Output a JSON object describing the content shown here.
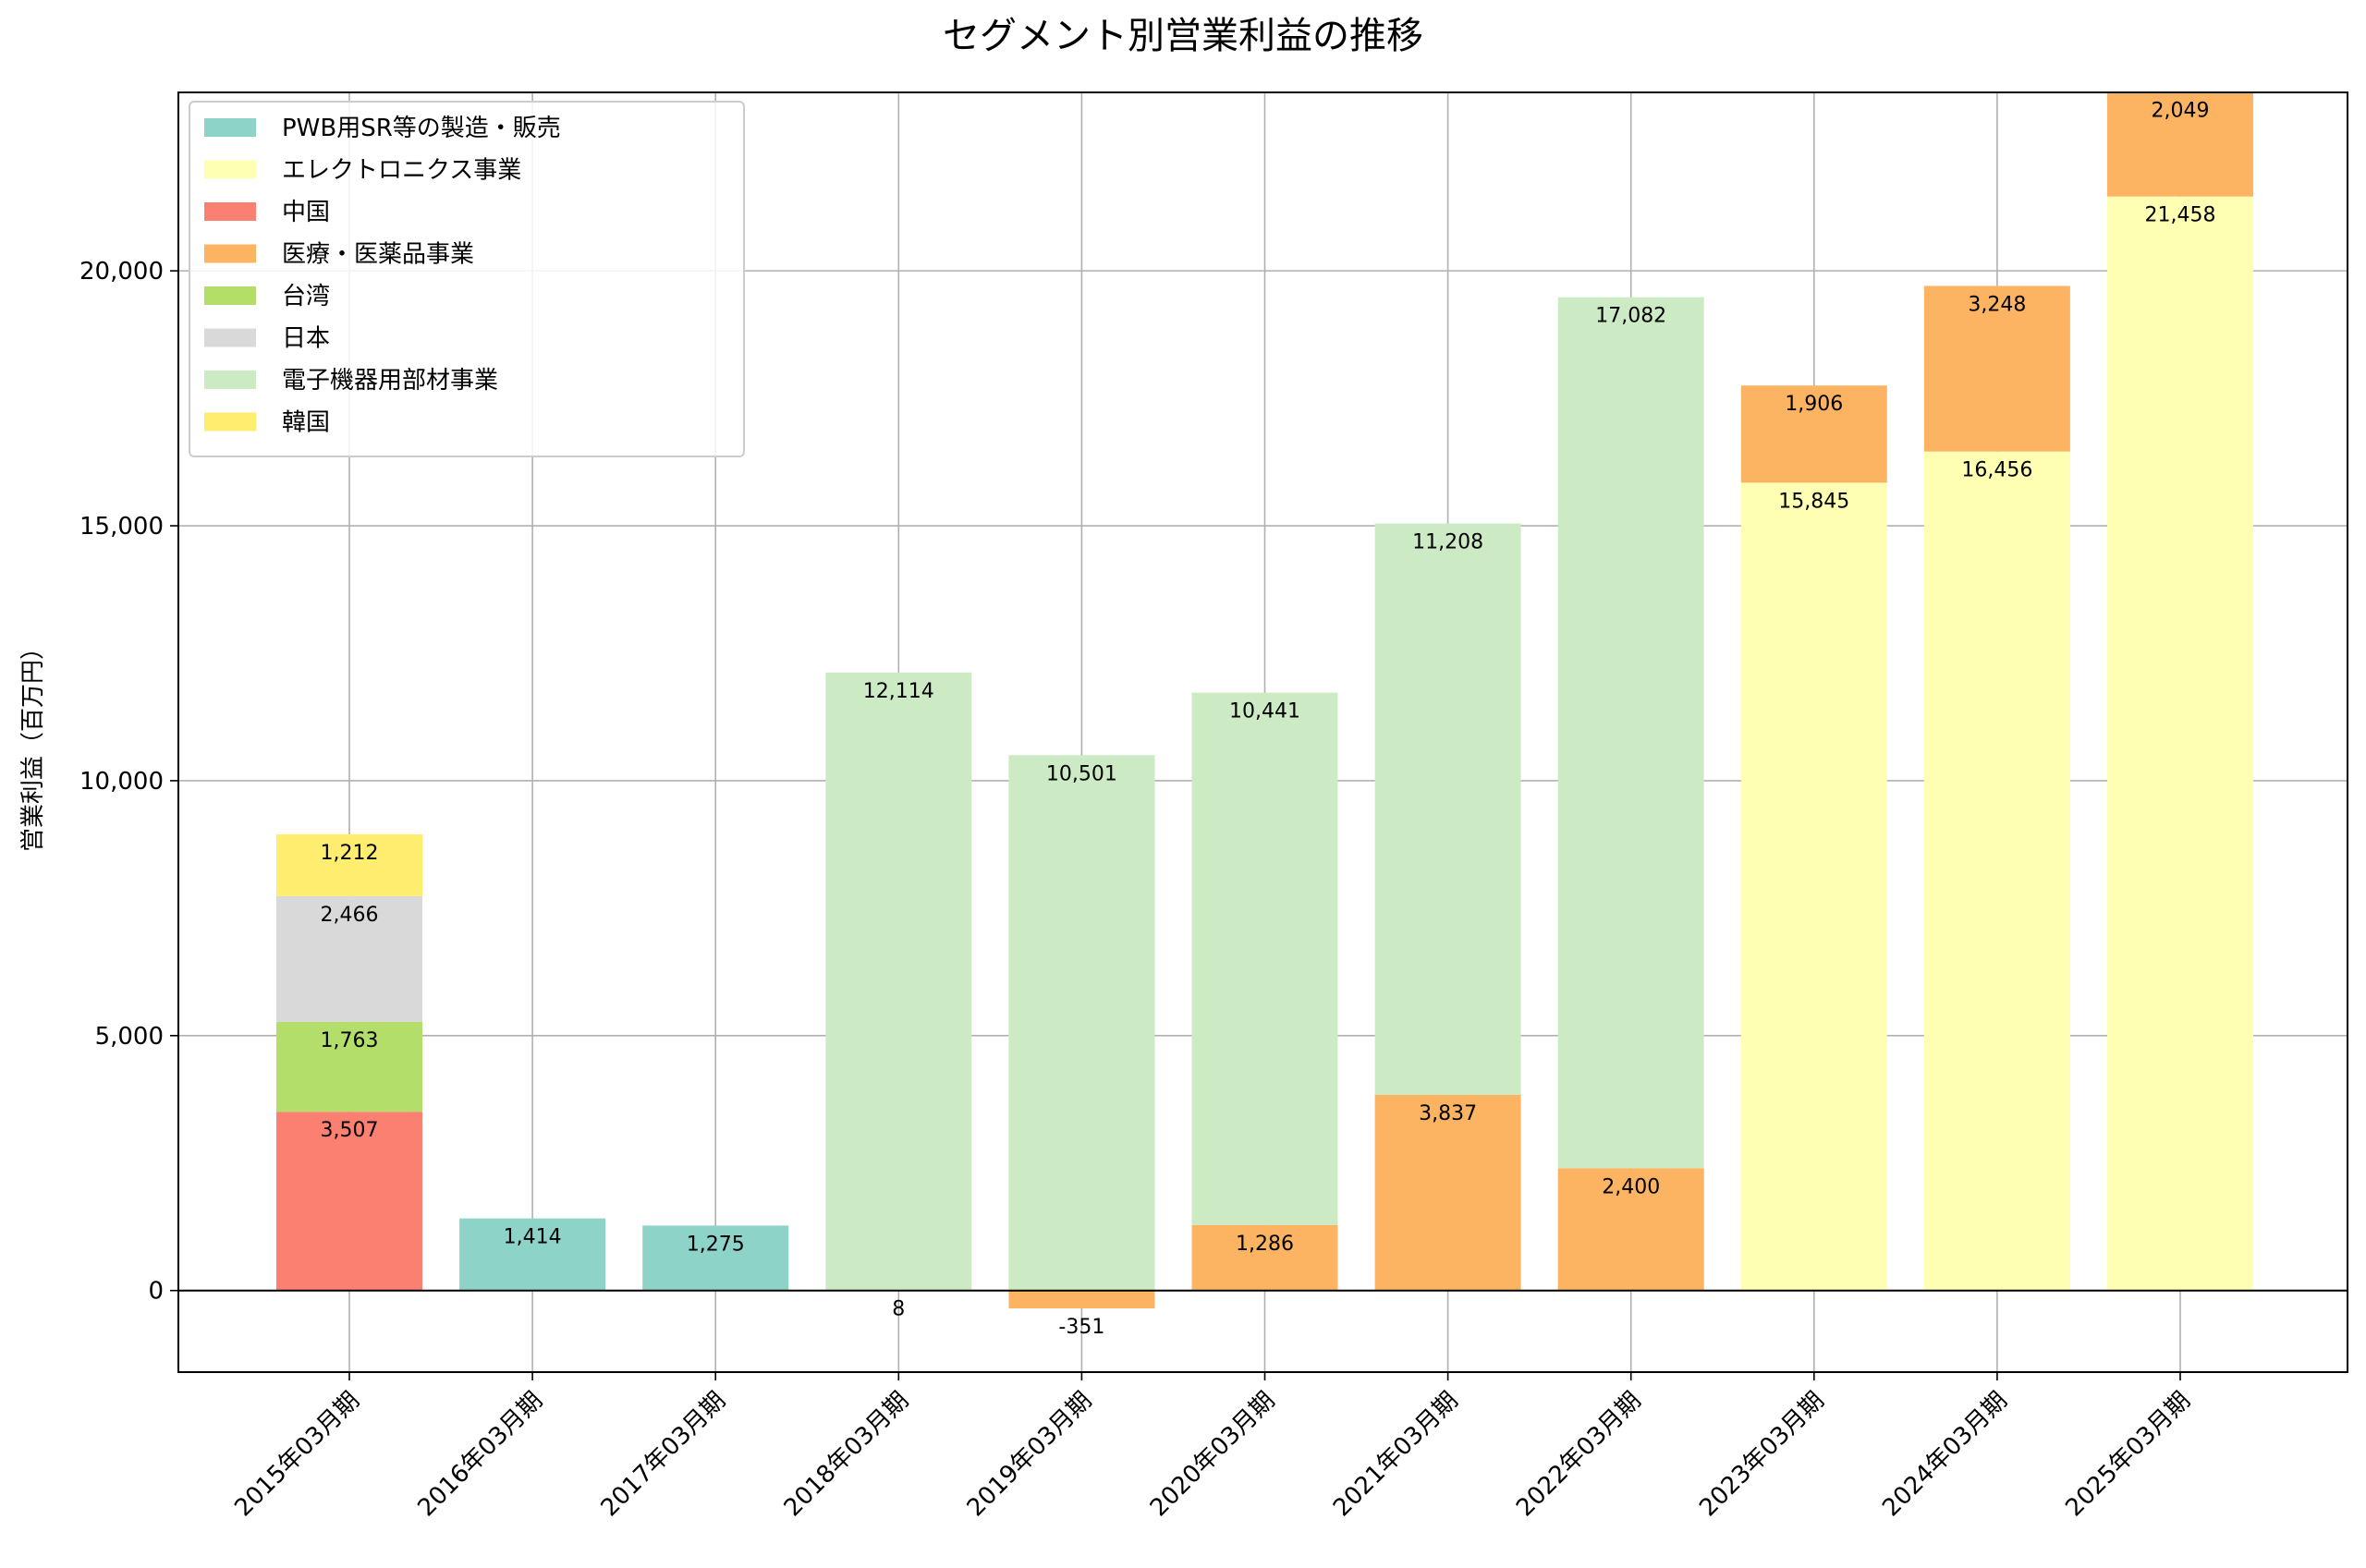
{
  "chart_data": {
    "type": "bar",
    "stacked": true,
    "title": "セグメント別営業利益の推移",
    "xlabel": "",
    "ylabel": "営業利益（百万円）",
    "ylim": [
      -1600,
      23500
    ],
    "yticks": [
      0,
      5000,
      10000,
      15000,
      20000
    ],
    "ytick_labels": [
      "0",
      "5,000",
      "10,000",
      "15,000",
      "20,000"
    ],
    "grid": true,
    "legend_position": "top-left",
    "categories": [
      "2015年03月期",
      "2016年03月期",
      "2017年03月期",
      "2018年03月期",
      "2019年03月期",
      "2020年03月期",
      "2021年03月期",
      "2022年03月期",
      "2023年03月期",
      "2024年03月期",
      "2025年03月期"
    ],
    "series": [
      {
        "name": "PWB用SR等の製造・販売",
        "color": "#8dd3c7",
        "values": [
          null,
          1414,
          1275,
          null,
          null,
          null,
          null,
          null,
          null,
          null,
          null
        ],
        "labels": [
          null,
          "1,414",
          "1,275",
          null,
          null,
          null,
          null,
          null,
          null,
          null,
          null
        ]
      },
      {
        "name": "エレクトロニクス事業",
        "color": "#ffffb3",
        "values": [
          null,
          null,
          null,
          null,
          null,
          null,
          null,
          null,
          15845,
          16456,
          21458
        ],
        "labels": [
          null,
          null,
          null,
          null,
          null,
          null,
          null,
          null,
          "15,845",
          "16,456",
          "21,458"
        ]
      },
      {
        "name": "中国",
        "color": "#fb8072",
        "values": [
          3507,
          null,
          null,
          null,
          null,
          null,
          null,
          null,
          null,
          null,
          null
        ],
        "labels": [
          "3,507",
          null,
          null,
          null,
          null,
          null,
          null,
          null,
          null,
          null,
          null
        ]
      },
      {
        "name": "医療・医薬品事業",
        "color": "#fdb462",
        "values": [
          null,
          null,
          null,
          8,
          -351,
          1286,
          3837,
          2400,
          1906,
          3248,
          2049
        ],
        "labels": [
          null,
          null,
          null,
          "8",
          "-351",
          "1,286",
          "3,837",
          "2,400",
          "1,906",
          "3,248",
          "2,049"
        ]
      },
      {
        "name": "台湾",
        "color": "#b3de69",
        "values": [
          1763,
          null,
          null,
          null,
          null,
          null,
          null,
          null,
          null,
          null,
          null
        ],
        "labels": [
          "1,763",
          null,
          null,
          null,
          null,
          null,
          null,
          null,
          null,
          null,
          null
        ]
      },
      {
        "name": "日本",
        "color": "#d9d9d9",
        "values": [
          2466,
          null,
          null,
          null,
          null,
          null,
          null,
          null,
          null,
          null,
          null
        ],
        "labels": [
          "2,466",
          null,
          null,
          null,
          null,
          null,
          null,
          null,
          null,
          null,
          null
        ]
      },
      {
        "name": "電子機器用部材事業",
        "color": "#ccebc5",
        "values": [
          null,
          null,
          null,
          12114,
          10501,
          10441,
          11208,
          17082,
          null,
          null,
          null
        ],
        "labels": [
          null,
          null,
          null,
          "12,114",
          "10,501",
          "10,441",
          "11,208",
          "17,082",
          null,
          null,
          null
        ]
      },
      {
        "name": "韓国",
        "color": "#ffed6f",
        "values": [
          1212,
          null,
          null,
          null,
          null,
          null,
          null,
          null,
          null,
          null,
          null
        ],
        "labels": [
          "1,212",
          null,
          null,
          null,
          null,
          null,
          null,
          null,
          null,
          null,
          null
        ]
      }
    ]
  }
}
